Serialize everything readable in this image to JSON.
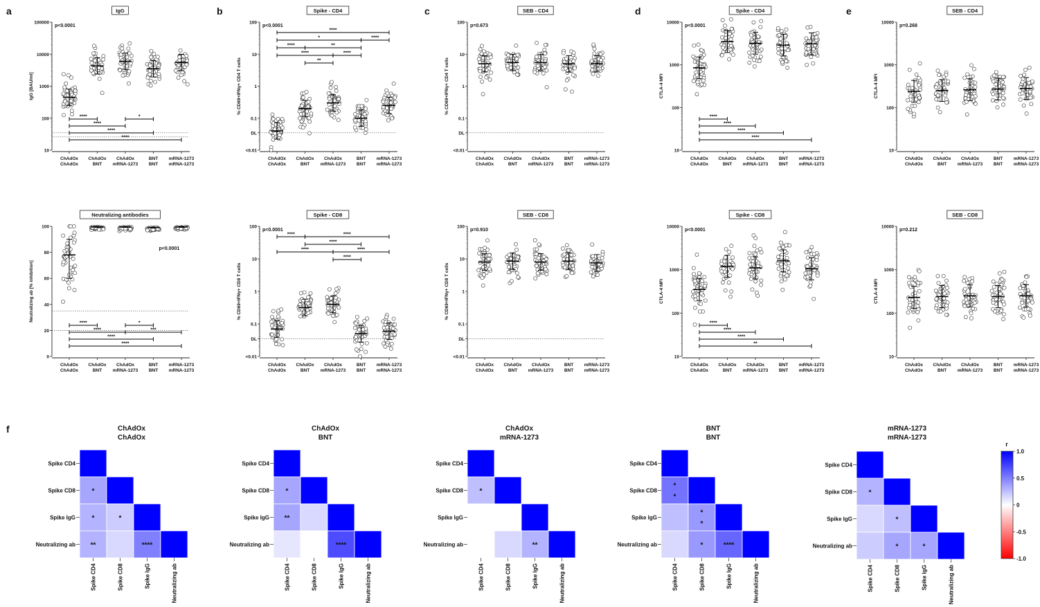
{
  "groups": [
    "ChAdOx\nChAdOx",
    "ChAdOx\nBNT",
    "ChAdOx\nmRNA-1273",
    "BNT\nBNT",
    "mRNA-1273\nmRNA-1273"
  ],
  "chart_data": [
    {
      "panel": "a",
      "type": "scatter",
      "title": "IgG",
      "ylabel": "IgG [BAU/ml]",
      "scale": "log",
      "ylim": [
        10,
        100000
      ],
      "ytick_labels": [
        "100000",
        "10000",
        "1000",
        "100",
        "10"
      ],
      "pvalue": "p<0.0001",
      "medians": [
        450,
        4300,
        6000,
        3500,
        5500
      ],
      "hlines": [
        35,
        26
      ],
      "brackets": [
        {
          "from": 0,
          "to": 1,
          "label": "****"
        },
        {
          "from": 0,
          "to": 2,
          "label": "****"
        },
        {
          "from": 2,
          "to": 3,
          "label": "*"
        },
        {
          "from": 0,
          "to": 3,
          "label": "****"
        },
        {
          "from": 0,
          "to": 4,
          "label": "****"
        }
      ]
    },
    {
      "panel": "b",
      "type": "scatter",
      "title": "Spike - CD4",
      "ylabel": "% CD69+IFNγ+ CD4 T cells",
      "scale": "log",
      "ylim": [
        0.01,
        100
      ],
      "ytick_labels": [
        "100",
        "10",
        "1",
        "0.1",
        "DL",
        "<0.01"
      ],
      "pvalue": "p<0.0001",
      "medians": [
        0.04,
        0.2,
        0.3,
        0.1,
        0.25
      ],
      "hlines": [
        0.035
      ],
      "brackets": [
        {
          "from": 0,
          "to": 4,
          "label": "****"
        },
        {
          "from": 0,
          "to": 3,
          "label": "*"
        },
        {
          "from": 1,
          "to": 3,
          "label": "**"
        },
        {
          "from": 0,
          "to": 2,
          "label": "****"
        },
        {
          "from": 0,
          "to": 1,
          "label": "****"
        },
        {
          "from": 1,
          "to": 2,
          "label": "**"
        },
        {
          "from": 2,
          "to": 3,
          "label": "****"
        },
        {
          "from": 3,
          "to": 4,
          "label": "****"
        }
      ]
    },
    {
      "panel": "c",
      "type": "scatter",
      "title": "SEB - CD4",
      "ylabel": "% CD69+IFNγ+ CD4 T cells",
      "scale": "log",
      "ylim": [
        0.01,
        100
      ],
      "ytick_labels": [
        "100",
        "10",
        "1",
        "0.1",
        "DL",
        "<0.01"
      ],
      "pvalue": "p=0.673",
      "medians": [
        5,
        5.5,
        5.5,
        5,
        5
      ],
      "hlines": [
        0.035
      ],
      "brackets": []
    },
    {
      "panel": "d",
      "type": "scatter",
      "title": "Spike - CD4",
      "ylabel": "CTLA-4 MFI",
      "scale": "log",
      "ylim": [
        10,
        10000
      ],
      "ytick_labels": [
        "10000",
        "1000",
        "100",
        "10"
      ],
      "pvalue": "p<0.0001",
      "medians": [
        850,
        3500,
        3200,
        2900,
        3100
      ],
      "hlines": [],
      "brackets": [
        {
          "from": 0,
          "to": 1,
          "label": "****"
        },
        {
          "from": 0,
          "to": 2,
          "label": "****"
        },
        {
          "from": 0,
          "to": 3,
          "label": "****"
        },
        {
          "from": 0,
          "to": 4,
          "label": "****"
        }
      ]
    },
    {
      "panel": "e",
      "type": "scatter",
      "title": "SEB - CD4",
      "ylabel": "CTLA-4 MFI",
      "scale": "log",
      "ylim": [
        10,
        10000
      ],
      "ytick_labels": [
        "10000",
        "1000",
        "100",
        "10"
      ],
      "pvalue": "p=0.268",
      "medians": [
        240,
        250,
        260,
        270,
        280
      ],
      "hlines": [],
      "brackets": []
    },
    {
      "panel": "",
      "type": "scatter",
      "title": "Neutralizing antibodies",
      "ylabel": "Neutralizing ab [% inhibition]",
      "scale": "linear",
      "ylim": [
        0,
        100
      ],
      "ytick_labels": [
        "100",
        "80",
        "60",
        "40",
        "20",
        "0"
      ],
      "pvalue": "p<0.0001",
      "medians": [
        78,
        99.5,
        99.5,
        99,
        99.5
      ],
      "hlines": [
        35,
        20
      ],
      "brackets": [
        {
          "from": 0,
          "to": 1,
          "label": "****"
        },
        {
          "from": 2,
          "to": 3,
          "label": "*"
        },
        {
          "from": 0,
          "to": 2,
          "label": "****"
        },
        {
          "from": 2,
          "to": 4,
          "label": "***"
        },
        {
          "from": 0,
          "to": 3,
          "label": "****"
        },
        {
          "from": 0,
          "to": 4,
          "label": "****"
        }
      ]
    },
    {
      "panel": "",
      "type": "scatter",
      "title": "Spike - CD8",
      "ylabel": "% CD69+IFNγ+ CD8 T cells",
      "scale": "log",
      "ylim": [
        0.01,
        100
      ],
      "ytick_labels": [
        "100",
        "10",
        "1",
        "0.1",
        "DL",
        "<0.01"
      ],
      "pvalue": "p<0.0001",
      "medians": [
        0.07,
        0.32,
        0.4,
        0.05,
        0.06
      ],
      "hlines": [
        0.035
      ],
      "brackets": [
        {
          "from": 1,
          "to": 4,
          "label": "****"
        },
        {
          "from": 1,
          "to": 3,
          "label": "****"
        },
        {
          "from": 0,
          "to": 2,
          "label": "****"
        },
        {
          "from": 2,
          "to": 4,
          "label": "****"
        },
        {
          "from": 0,
          "to": 1,
          "label": "****"
        },
        {
          "from": 2,
          "to": 3,
          "label": "****"
        }
      ]
    },
    {
      "panel": "",
      "type": "scatter",
      "title": "SEB - CD8",
      "ylabel": "% CD69+IFNγ+ CD8 T cells",
      "scale": "log",
      "ylim": [
        0.01,
        100
      ],
      "ytick_labels": [
        "100",
        "10",
        "1",
        "0.1",
        "DL",
        "<0.01"
      ],
      "pvalue": "p=0.910",
      "medians": [
        8,
        8.5,
        8,
        8.5,
        7.5
      ],
      "hlines": [
        0.035
      ],
      "brackets": []
    },
    {
      "panel": "",
      "type": "scatter",
      "title": "Spike - CD8",
      "ylabel": "CTLA-4 MFI",
      "scale": "log",
      "ylim": [
        10,
        10000
      ],
      "ytick_labels": [
        "10000",
        "1000",
        "100",
        "10"
      ],
      "pvalue": "p<0.0001",
      "medians": [
        350,
        1200,
        1100,
        1600,
        1050
      ],
      "hlines": [],
      "brackets": [
        {
          "from": 0,
          "to": 1,
          "label": "****"
        },
        {
          "from": 0,
          "to": 2,
          "label": "****"
        },
        {
          "from": 0,
          "to": 3,
          "label": "****"
        },
        {
          "from": 0,
          "to": 4,
          "label": "**"
        }
      ]
    },
    {
      "panel": "",
      "type": "scatter",
      "title": "SEB - CD8",
      "ylabel": "CTLA-4 MFI",
      "scale": "log",
      "ylim": [
        10,
        10000
      ],
      "ytick_labels": [
        "10000",
        "1000",
        "100",
        "10"
      ],
      "pvalue": "p=0.212",
      "medians": [
        230,
        240,
        250,
        240,
        250
      ],
      "hlines": [],
      "brackets": []
    },
    {
      "panel": "f",
      "type": "heatmap",
      "panels": [
        {
          "title": "ChAdOx\nChAdOx",
          "cells": [
            [
              1
            ],
            [
              0.35,
              1
            ],
            [
              0.3,
              0.2,
              1
            ],
            [
              0.3,
              0.15,
              0.5,
              1
            ]
          ],
          "stars": [
            [
              ""
            ],
            [
              "*",
              ""
            ],
            [
              "*",
              "*",
              ""
            ],
            [
              "**",
              "",
              "****",
              ""
            ]
          ]
        },
        {
          "title": "ChAdOx\nBNT",
          "cells": [
            [
              1
            ],
            [
              0.35,
              1
            ],
            [
              0.35,
              0.15,
              1
            ],
            [
              0.1,
              0,
              0.7,
              1
            ]
          ],
          "stars": [
            [
              ""
            ],
            [
              "*",
              ""
            ],
            [
              "**",
              "",
              ""
            ],
            [
              "",
              "",
              "****",
              ""
            ]
          ]
        },
        {
          "title": "ChAdOx\nmRNA-1273",
          "cells": [
            [
              1
            ],
            [
              0.25,
              1
            ],
            [
              0,
              0,
              1
            ],
            [
              0,
              0.15,
              0.3,
              1
            ]
          ],
          "stars": [
            [
              ""
            ],
            [
              "*",
              ""
            ],
            [
              "",
              "",
              ""
            ],
            [
              "",
              "",
              "**",
              ""
            ]
          ]
        },
        {
          "title": "BNT\nBNT",
          "cells": [
            [
              1
            ],
            [
              0.55,
              1
            ],
            [
              0.25,
              0.4,
              1
            ],
            [
              0.15,
              0.4,
              0.6,
              1
            ]
          ],
          "stars": [
            [
              ""
            ],
            [
              "*\n*",
              ""
            ],
            [
              "",
              "*\n*",
              ""
            ],
            [
              "",
              "*",
              "****",
              ""
            ]
          ]
        },
        {
          "title": "mRNA-1273\nmRNA-1273",
          "cells": [
            [
              1
            ],
            [
              0.3,
              1
            ],
            [
              0.15,
              0.25,
              1
            ],
            [
              0.2,
              0.35,
              0.35,
              1
            ]
          ],
          "stars": [
            [
              ""
            ],
            [
              "*",
              ""
            ],
            [
              "",
              "*",
              ""
            ],
            [
              "",
              "*",
              "*",
              ""
            ]
          ]
        }
      ],
      "labels": [
        "Spike CD4",
        "Spike CD8",
        "Spike IgG",
        "Neutralizing ab"
      ],
      "legend_title": "r",
      "legend_ticks": [
        "1.0",
        "0.5",
        "0",
        "-0.5",
        "-1.0"
      ]
    }
  ]
}
